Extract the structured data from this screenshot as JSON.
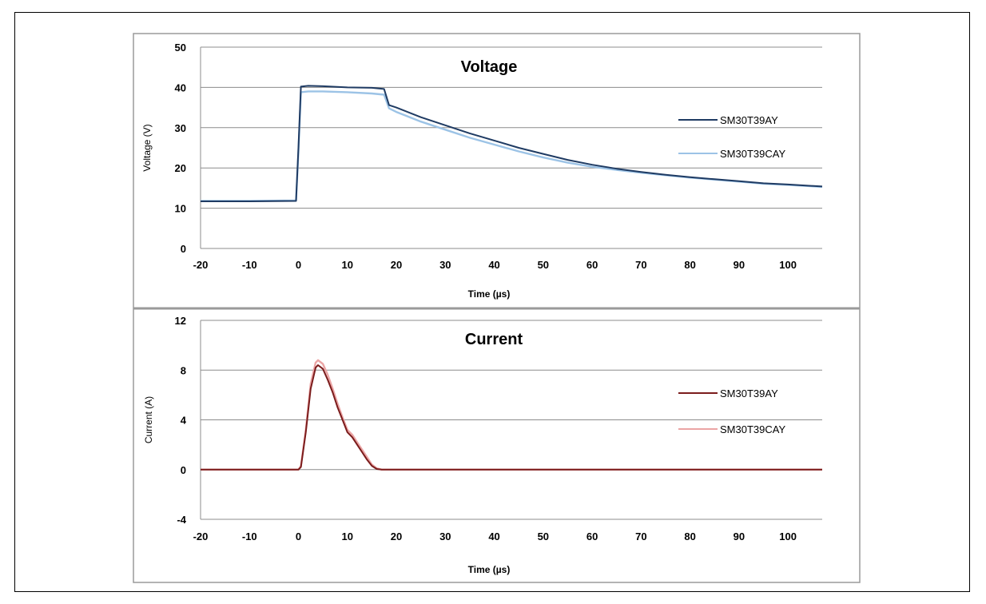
{
  "chart_data": [
    {
      "type": "line",
      "title": "Voltage",
      "xlabel": "Time (µs)",
      "ylabel": "Voltage (V)",
      "xlim": [
        -20,
        107
      ],
      "ylim": [
        0,
        50
      ],
      "xticks": [
        -20,
        -10,
        0,
        10,
        20,
        30,
        40,
        50,
        60,
        70,
        80,
        90,
        100
      ],
      "yticks": [
        0,
        10,
        20,
        30,
        40,
        50
      ],
      "grid": "horizontal",
      "legend": "right",
      "series": [
        {
          "name": "SM30T39AY",
          "color": "#1f3b63",
          "x": [
            -20,
            -10,
            -0.5,
            0,
            0.5,
            2,
            5,
            10,
            15,
            17.5,
            18.5,
            20,
            25,
            30,
            35,
            40,
            45,
            50,
            55,
            60,
            65,
            70,
            75,
            80,
            85,
            90,
            95,
            100,
            107
          ],
          "y": [
            11.7,
            11.7,
            11.8,
            25,
            40.2,
            40.4,
            40.3,
            40.0,
            39.9,
            39.6,
            35.6,
            35.0,
            32.6,
            30.6,
            28.6,
            26.8,
            25.0,
            23.5,
            22.0,
            20.8,
            19.8,
            19.0,
            18.3,
            17.7,
            17.2,
            16.7,
            16.2,
            15.9,
            15.4
          ]
        },
        {
          "name": "SM30T39CAY",
          "color": "#9cc3e6",
          "x": [
            -20,
            -10,
            -0.5,
            0,
            0.5,
            2,
            5,
            10,
            15,
            17.5,
            18.5,
            20,
            25,
            30,
            35,
            40,
            45,
            50,
            55,
            60,
            65,
            70,
            75,
            80,
            85,
            90,
            95,
            100,
            107
          ],
          "y": [
            11.8,
            11.8,
            11.9,
            24,
            38.8,
            39.0,
            39.0,
            38.8,
            38.5,
            38.2,
            34.8,
            33.9,
            31.5,
            29.5,
            27.5,
            25.8,
            24.1,
            22.6,
            21.3,
            20.3,
            19.5,
            18.8,
            18.2,
            17.6,
            17.1,
            16.6,
            16.1,
            15.8,
            15.3
          ]
        }
      ]
    },
    {
      "type": "line",
      "title": "Current",
      "xlabel": "Time (µs)",
      "ylabel": "Current (A)",
      "xlim": [
        -20,
        107
      ],
      "ylim": [
        -4,
        12
      ],
      "xticks": [
        -20,
        -10,
        0,
        10,
        20,
        30,
        40,
        50,
        60,
        70,
        80,
        90,
        100
      ],
      "yticks": [
        -4,
        0,
        4,
        8,
        12
      ],
      "grid": "horizontal",
      "legend": "right",
      "series": [
        {
          "name": "SM30T39AY",
          "color": "#7b1c1c",
          "x": [
            -20,
            0,
            0.5,
            1.5,
            2.5,
            3.5,
            4,
            5,
            6,
            7,
            8,
            9,
            10,
            11,
            12,
            13,
            14,
            15,
            16,
            17,
            18,
            107
          ],
          "y": [
            0,
            0,
            0.2,
            3.0,
            6.5,
            8.2,
            8.4,
            8.1,
            7.2,
            6.2,
            5.0,
            4.0,
            3.0,
            2.6,
            2.0,
            1.4,
            0.8,
            0.3,
            0.05,
            0,
            0,
            0
          ]
        },
        {
          "name": "SM30T39CAY",
          "color": "#eba5a5",
          "x": [
            -20,
            0,
            0.5,
            1.5,
            2.5,
            3.5,
            4,
            5,
            6,
            7,
            8,
            9,
            10,
            11,
            12,
            13,
            14,
            15,
            16,
            17,
            18,
            107
          ],
          "y": [
            0,
            0,
            0.3,
            3.2,
            6.9,
            8.6,
            8.8,
            8.5,
            7.6,
            6.5,
            5.3,
            4.2,
            3.2,
            2.8,
            2.2,
            1.6,
            1.0,
            0.4,
            0.1,
            0,
            0,
            0
          ]
        }
      ]
    }
  ]
}
